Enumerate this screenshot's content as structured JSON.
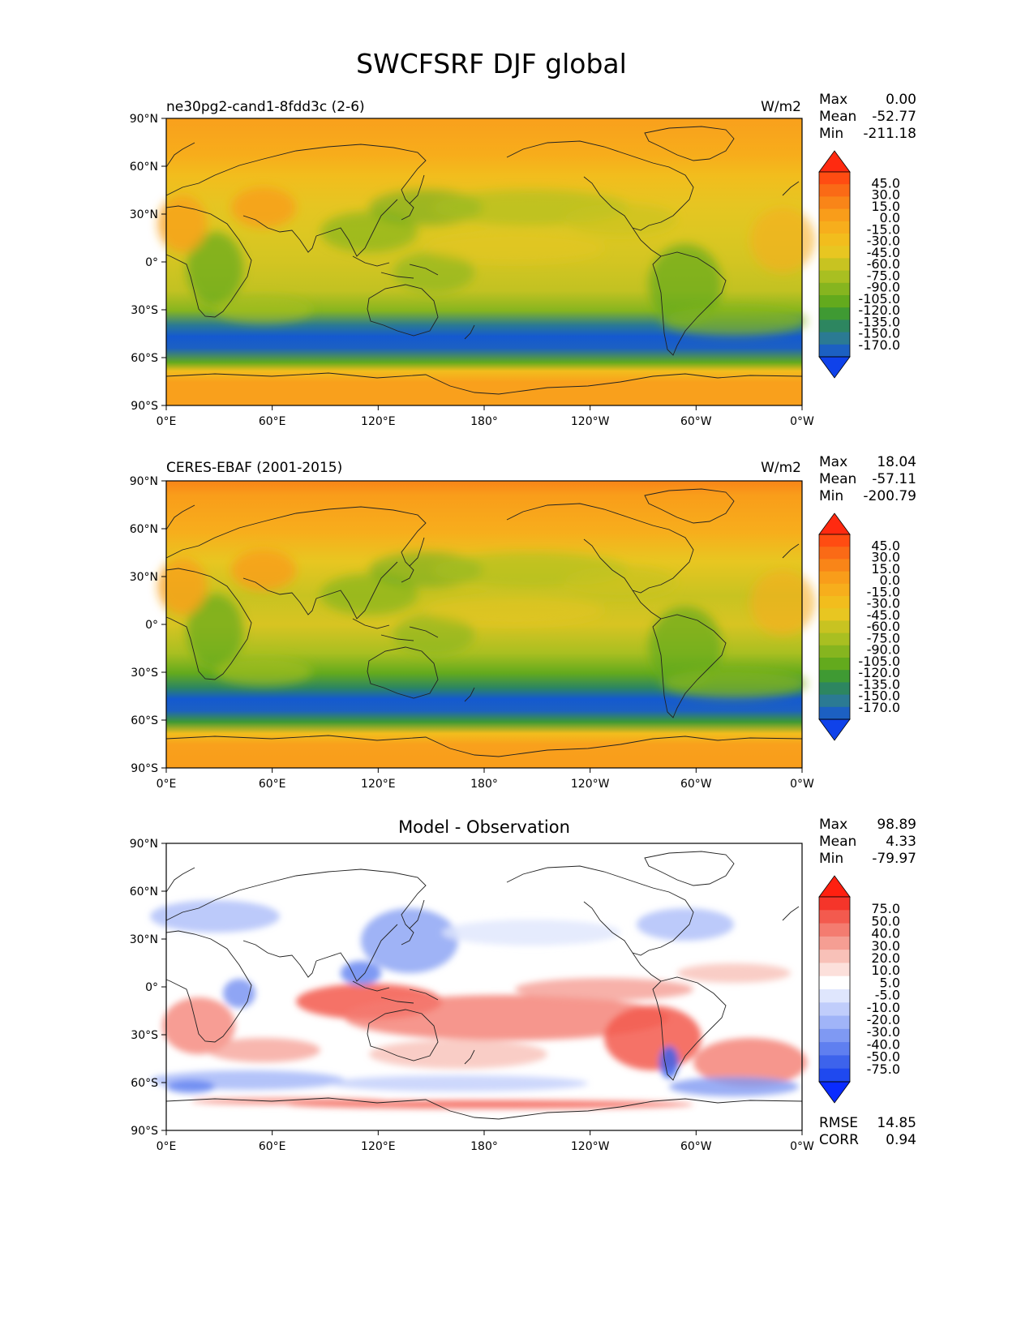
{
  "figure": {
    "title": "SWCFSRF DJF global"
  },
  "lon_ticks": [
    "0°E",
    "60°E",
    "120°E",
    "180°",
    "120°W",
    "60°W",
    "0°W"
  ],
  "lat_ticks": [
    "90°N",
    "60°N",
    "30°N",
    "0°",
    "30°S",
    "60°S",
    "90°S"
  ],
  "panels": [
    {
      "id": "model",
      "left_title": "ne30pg2-cand1-8fdd3c (2-6)",
      "center_title": "",
      "units": "W/m2",
      "stats": [
        {
          "label": "Max",
          "value": "0.00"
        },
        {
          "label": "Mean",
          "value": "-52.77"
        },
        {
          "label": "Min",
          "value": "-211.18"
        }
      ],
      "colorbar": {
        "labels": [
          "45.0",
          "30.0",
          "15.0",
          "0.0",
          "-15.0",
          "-30.0",
          "-45.0",
          "-60.0",
          "-75.0",
          "-90.0",
          "-105.0",
          "-120.0",
          "-135.0",
          "-150.0",
          "-170.0"
        ],
        "colors": [
          "#ff2a10",
          "#ff4c12",
          "#fa6a16",
          "#f98518",
          "#f99d1a",
          "#f7ae1c",
          "#f2bd1d",
          "#e8c621",
          "#c8c321",
          "#a9bf21",
          "#86b51f",
          "#63aa1d",
          "#3f9a33",
          "#2d8660",
          "#2b7a93",
          "#1c60c2",
          "#0f42ea"
        ]
      },
      "footer": []
    },
    {
      "id": "obs",
      "left_title": "CERES-EBAF (2001-2015)",
      "center_title": "",
      "units": "W/m2",
      "stats": [
        {
          "label": "Max",
          "value": "18.04"
        },
        {
          "label": "Mean",
          "value": "-57.11"
        },
        {
          "label": "Min",
          "value": "-200.79"
        }
      ],
      "colorbar": {
        "labels": [
          "45.0",
          "30.0",
          "15.0",
          "0.0",
          "-15.0",
          "-30.0",
          "-45.0",
          "-60.0",
          "-75.0",
          "-90.0",
          "-105.0",
          "-120.0",
          "-135.0",
          "-150.0",
          "-170.0"
        ],
        "colors": [
          "#ff2a10",
          "#ff4c12",
          "#fa6a16",
          "#f98518",
          "#f99d1a",
          "#f7ae1c",
          "#f2bd1d",
          "#e8c621",
          "#c8c321",
          "#a9bf21",
          "#86b51f",
          "#63aa1d",
          "#3f9a33",
          "#2d8660",
          "#2b7a93",
          "#1c60c2",
          "#0f42ea"
        ]
      },
      "footer": []
    },
    {
      "id": "diff",
      "left_title": "",
      "center_title": "Model - Observation",
      "units": "",
      "stats": [
        {
          "label": "Max",
          "value": "98.89"
        },
        {
          "label": "Mean",
          "value": "4.33"
        },
        {
          "label": "Min",
          "value": "-79.97"
        }
      ],
      "colorbar": {
        "labels": [
          "75.0",
          "50.0",
          "40.0",
          "30.0",
          "20.0",
          "10.0",
          "5.0",
          "-5.0",
          "-10.0",
          "-20.0",
          "-30.0",
          "-40.0",
          "-50.0",
          "-75.0"
        ],
        "colors": [
          "#ff2010",
          "#f5352a",
          "#f35a4e",
          "#f47c70",
          "#f59e93",
          "#f8c1b8",
          "#fce0db",
          "#ffffff",
          "#dfe6fd",
          "#c0cdfb",
          "#a0b4f8",
          "#7f99f3",
          "#5f7ff0",
          "#3d63ec",
          "#1f49ef",
          "#0a2bff"
        ]
      },
      "footer": [
        {
          "label": "RMSE",
          "value": "14.85"
        },
        {
          "label": "CORR",
          "value": "0.94"
        }
      ]
    }
  ]
}
